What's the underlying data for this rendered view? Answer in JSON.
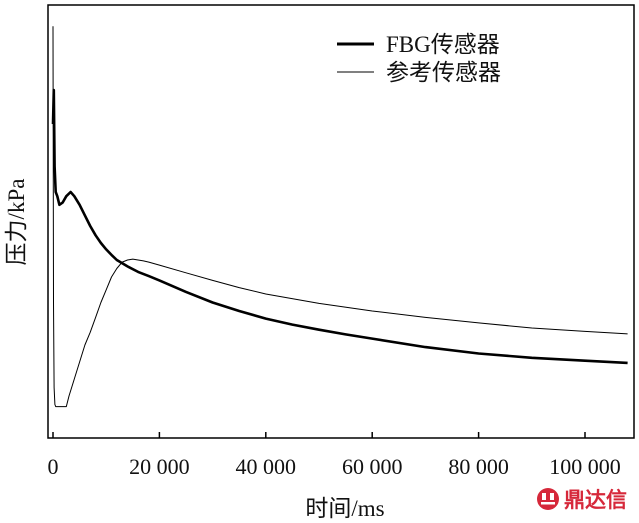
{
  "chart_data": {
    "type": "line",
    "title": "",
    "xlabel": "时间/ms",
    "ylabel": "压力/kPa",
    "xlim": [
      -1000,
      110000
    ],
    "ylim": [
      0,
      1
    ],
    "x_ticks": [
      0,
      20000,
      40000,
      60000,
      80000,
      100000
    ],
    "x_tick_labels": [
      "0",
      "20 000",
      "40 000",
      "60 000",
      "80 000",
      "100 000"
    ],
    "y_tick_labels_shown": false,
    "grid": false,
    "legend_position": "top-right",
    "series": [
      {
        "name": "FBG传感器",
        "line_weight": "thick",
        "color": "#000000",
        "x": [
          0,
          150,
          300,
          500,
          800,
          1200,
          1800,
          2500,
          3300,
          4000,
          5000,
          6000,
          7000,
          8000,
          9000,
          10000,
          11000,
          12000,
          14000,
          16000,
          18000,
          20000,
          25000,
          30000,
          35000,
          40000,
          45000,
          50000,
          55000,
          60000,
          70000,
          80000,
          90000,
          100000,
          108000
        ],
        "y": [
          0.72,
          0.8,
          0.62,
          0.56,
          0.55,
          0.53,
          0.535,
          0.55,
          0.56,
          0.55,
          0.53,
          0.505,
          0.48,
          0.458,
          0.44,
          0.425,
          0.412,
          0.4,
          0.385,
          0.372,
          0.362,
          0.352,
          0.325,
          0.3,
          0.28,
          0.262,
          0.248,
          0.236,
          0.225,
          0.215,
          0.195,
          0.18,
          0.17,
          0.163,
          0.158
        ]
      },
      {
        "name": "参考传感器",
        "line_weight": "thin",
        "color": "#000000",
        "x": [
          0,
          100,
          200,
          350,
          500,
          800,
          1500,
          2500,
          3000,
          4000,
          5000,
          6000,
          7000,
          8000,
          9000,
          10000,
          11000,
          12000,
          13000,
          14000,
          15000,
          16000,
          17000,
          18000,
          20000,
          25000,
          30000,
          35000,
          40000,
          50000,
          60000,
          70000,
          80000,
          90000,
          100000,
          108000
        ],
        "y": [
          0.95,
          0.3,
          0.1,
          0.06,
          0.055,
          0.055,
          0.055,
          0.055,
          0.08,
          0.12,
          0.16,
          0.2,
          0.23,
          0.265,
          0.3,
          0.33,
          0.36,
          0.38,
          0.395,
          0.4,
          0.402,
          0.4,
          0.398,
          0.395,
          0.388,
          0.37,
          0.352,
          0.335,
          0.32,
          0.298,
          0.28,
          0.265,
          0.252,
          0.24,
          0.232,
          0.226
        ]
      }
    ]
  },
  "watermark": {
    "icon": "ding-logo-icon",
    "text": "鼎达信",
    "color": "#d6283a"
  }
}
